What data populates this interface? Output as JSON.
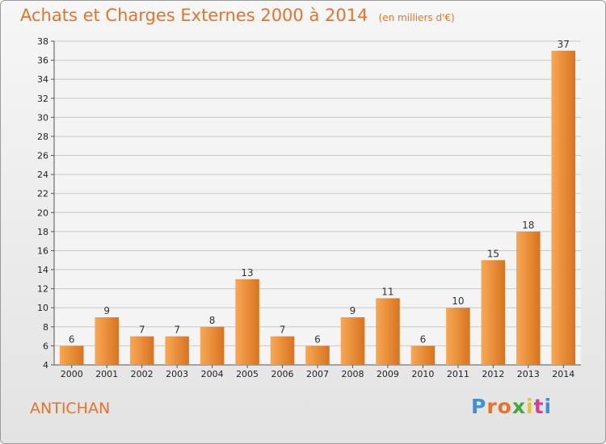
{
  "header": {
    "title": "Achats et Charges Externes 2000 à 2014",
    "subtitle": "(en milliers d'€)"
  },
  "footer": {
    "commune": "ANTICHAN",
    "logo_letters": [
      "P",
      "r",
      "o",
      "x",
      "i",
      "t",
      "i"
    ],
    "logo_colors": [
      "#3f8fd6",
      "#e8722a",
      "#e8722a",
      "#43a83a",
      "#e8c62a",
      "#d63f8f",
      "#3f8fd6"
    ]
  },
  "colors": {
    "accent": "#e8722a",
    "bar_light": "#f7a855",
    "bar_dark": "#d9731f",
    "grid": "#c8c8c8"
  },
  "chart_data": {
    "type": "bar",
    "title": "Achats et Charges Externes 2000 à 2014",
    "subtitle": "(en milliers d'€)",
    "xlabel": "",
    "ylabel": "",
    "categories": [
      "2000",
      "2001",
      "2002",
      "2003",
      "2004",
      "2005",
      "2006",
      "2007",
      "2008",
      "2009",
      "2010",
      "2011",
      "2012",
      "2013",
      "2014"
    ],
    "values": [
      6,
      9,
      7,
      7,
      8,
      13,
      7,
      6,
      9,
      11,
      6,
      10,
      15,
      18,
      37
    ],
    "ylim": [
      4,
      38
    ],
    "yticks": [
      4,
      6,
      8,
      10,
      12,
      14,
      16,
      18,
      20,
      22,
      24,
      26,
      28,
      30,
      32,
      34,
      36,
      38
    ],
    "grid": true,
    "legend": "none"
  }
}
